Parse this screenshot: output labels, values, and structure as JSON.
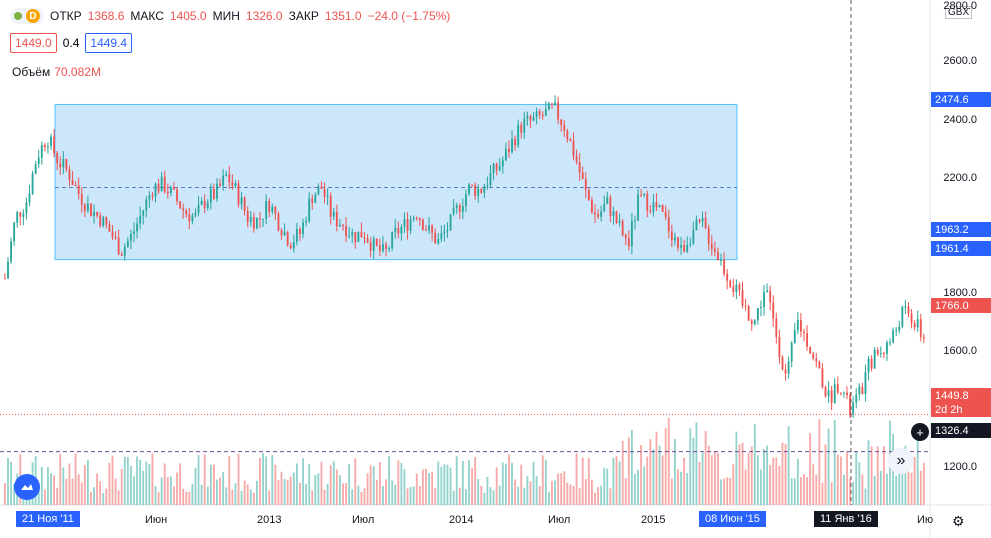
{
  "legend": {
    "indicator_letter": "D",
    "open_label": "ОТКР",
    "open_value": "1368.6",
    "high_label": "МАКС",
    "high_value": "1405.0",
    "low_label": "МИН",
    "low_value": "1326.0",
    "close_label": "ЗАКР",
    "close_value": "1351.0",
    "change": "−24.0 (−1.75%)"
  },
  "order": {
    "sell": "1449.0",
    "spread": "0.4",
    "buy": "1449.4"
  },
  "volume": {
    "label": "Объём",
    "value": "70.082M"
  },
  "currency": "GBX",
  "price_axis": [
    "2800.0",
    "2600.0",
    "2400.0",
    "2200.0",
    "1800.0",
    "1600.0",
    "1200.0"
  ],
  "price_tags": {
    "range_top": "2474.6",
    "range_mid_a": "1963.2",
    "range_mid_b": "1961.4",
    "last_price": "1766.0",
    "cursor_price": "1449.8",
    "countdown": "2d 2h",
    "crosshair_price": "1326.4"
  },
  "time_axis": {
    "start_highlight": "21 Ноя '11",
    "labels": [
      "Июн",
      "2013",
      "Июл",
      "2014",
      "Июл",
      "2015"
    ],
    "mid_highlight": "08 Июн '15",
    "cursor_highlight": "11 Янв '16",
    "end_label": "Ию"
  },
  "colors": {
    "up": "#26a69a",
    "down": "#ef5350",
    "range_fill": "#bbdefb",
    "range_border": "#4fc3f7",
    "highlight": "#2962ff",
    "cursor": "#131722"
  },
  "icons": [
    "settings-gear-icon",
    "scroll-right-icon",
    "add-plus-icon",
    "logo-cloud-icon"
  ],
  "chart_data": {
    "type": "candlestick",
    "y_range": [
      1150,
      2820
    ],
    "series_path_keypoints": [
      [
        1900,
        2100,
        2150,
        2300,
        2370,
        2290,
        2250,
        2180,
        2130,
        2100,
        2050,
        1990,
        2040,
        2120,
        2200,
        2210,
        2170,
        2120,
        2100,
        2160,
        2180,
        2240,
        2180,
        2100,
        2090,
        2150,
        2080,
        2020,
        2050,
        2170,
        2200,
        2100,
        2080,
        2040,
        2050,
        2000,
        1980,
        2050,
        2080,
        2120,
        2060,
        2020,
        2070,
        2140,
        2200,
        2190,
        2240,
        2280,
        2350,
        2410,
        2420,
        2440,
        2460,
        2400,
        2300,
        2180,
        2100,
        2150,
        2080,
        2010,
        2160,
        2150,
        2120,
        2060,
        1990,
        2050,
        2080,
        2010,
        1940,
        1870,
        1800,
        1760,
        1870,
        1720,
        1560,
        1760,
        1690,
        1600,
        1500,
        1560,
        1460,
        1520,
        1630,
        1660,
        1700,
        1790,
        1760,
        1700
      ]
    ],
    "range_box": {
      "top": 2474.6,
      "mid": 2200,
      "bottom": 1961.4,
      "from": "21 Ноя '11",
      "to": "08 Июн '15"
    }
  }
}
